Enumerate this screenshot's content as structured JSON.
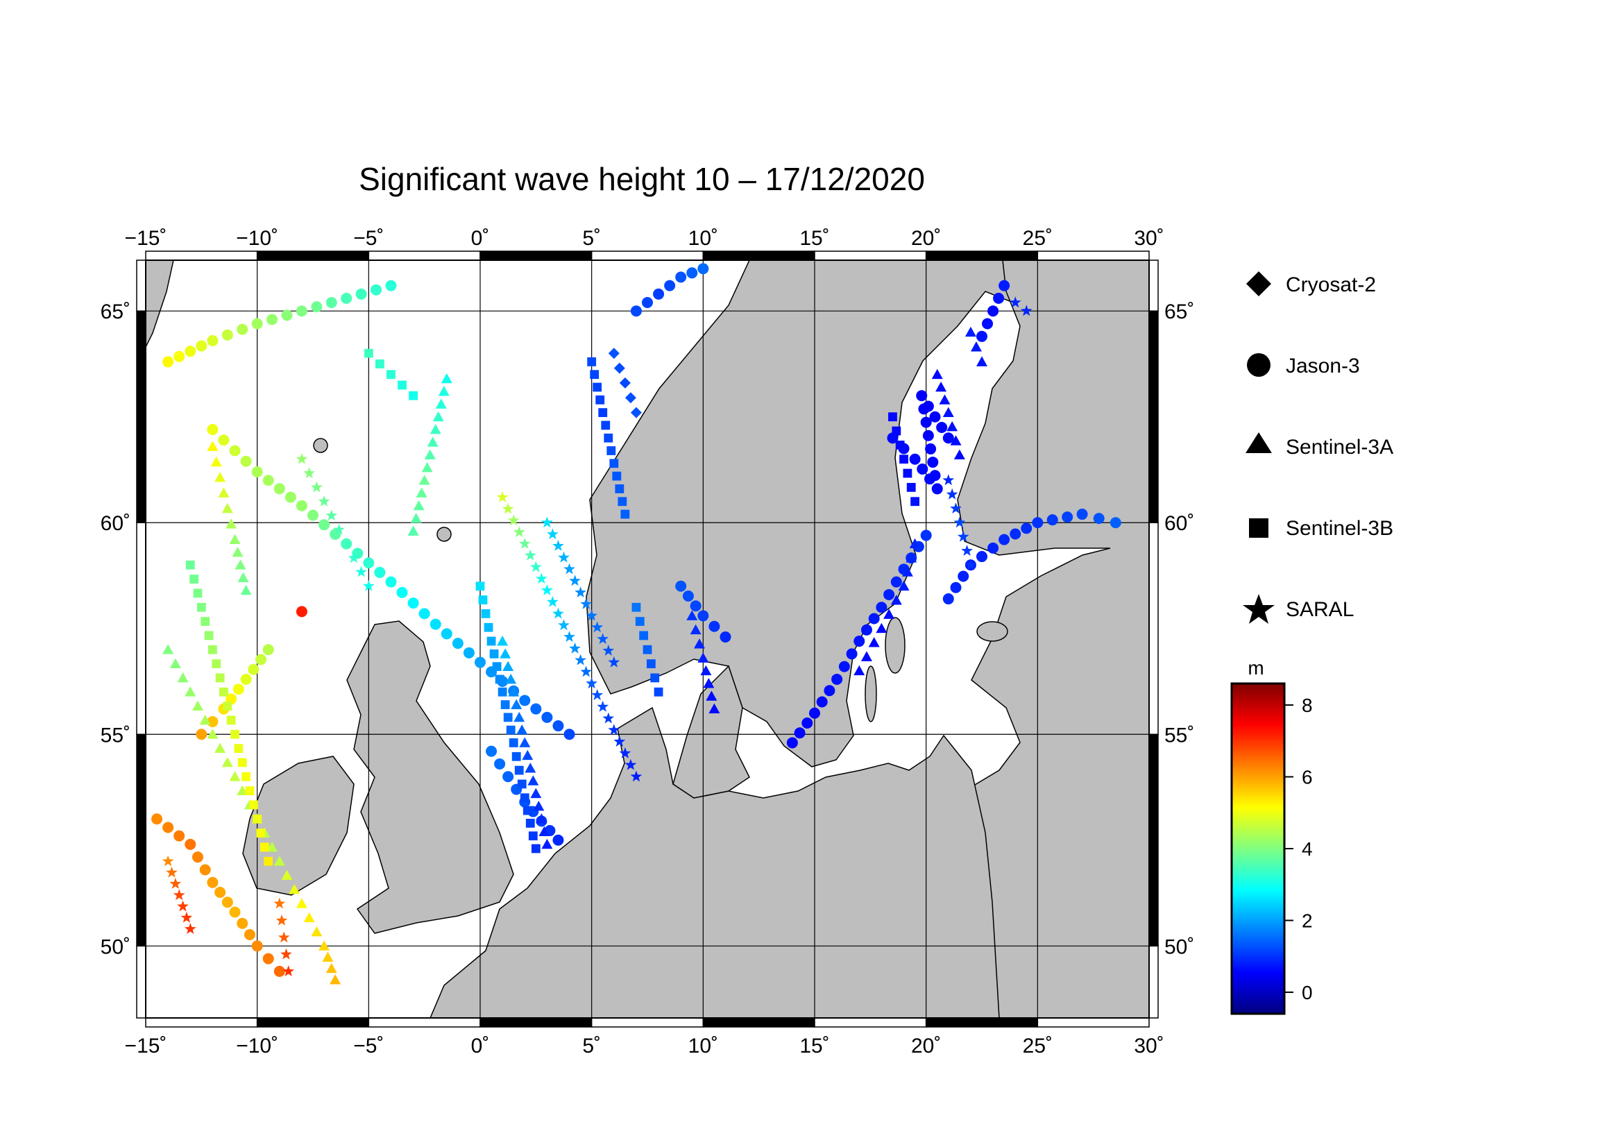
{
  "title": "Significant wave height 10 – 17/12/2020",
  "map": {
    "lon_range": [
      -15,
      30
    ],
    "lat_range": [
      48.3,
      66.2
    ],
    "lon_ticks": [
      -15,
      -10,
      -5,
      0,
      5,
      10,
      15,
      20,
      25,
      30
    ],
    "lon_tick_labels": [
      "−15˚",
      "−10˚",
      "−5˚",
      "0˚",
      "5˚",
      "10˚",
      "15˚",
      "20˚",
      "25˚",
      "30˚"
    ],
    "lat_ticks": [
      50,
      55,
      60,
      65
    ],
    "lat_tick_labels": [
      "50˚",
      "55˚",
      "60˚",
      "65˚"
    ],
    "land_color": "#bebebe",
    "sea_color": "#ffffff",
    "grid": true
  },
  "legend": {
    "items": [
      {
        "label": "Cryosat-2",
        "symbol": "diamond-icon"
      },
      {
        "label": "Jason-3",
        "symbol": "circle-icon"
      },
      {
        "label": "Sentinel-3A",
        "symbol": "triangle-icon"
      },
      {
        "label": "Sentinel-3B",
        "symbol": "square-icon"
      },
      {
        "label": "SARAL",
        "symbol": "star-icon"
      }
    ]
  },
  "colorbar": {
    "unit": "m",
    "range": [
      -0.6,
      8.6
    ],
    "ticks": [
      0,
      2,
      4,
      6,
      8
    ],
    "tick_labels": [
      "0",
      "2",
      "4",
      "6",
      "8"
    ],
    "colormap": "jet",
    "colors": [
      "#00007f",
      "#0000ff",
      "#0080ff",
      "#00ffff",
      "#80ff80",
      "#ffff00",
      "#ff8000",
      "#ff0000",
      "#7f0000"
    ]
  },
  "chart_data": {
    "type": "scatter",
    "title": "Significant wave height 10 – 17/12/2020",
    "xlabel": "",
    "ylabel": "",
    "xlim": [
      -15,
      30
    ],
    "ylim": [
      48.3,
      66.2
    ],
    "value_unit": "m",
    "series": [
      {
        "name": "Jason-3",
        "marker": "circle",
        "tracks": [
          {
            "points": [
              [
                -14,
                63.8,
                5.2
              ],
              [
                -12,
                64.3,
                4.8
              ],
              [
                -10,
                64.7,
                4.3
              ],
              [
                -8,
                65.0,
                4.0
              ],
              [
                -6,
                65.3,
                3.5
              ],
              [
                -4,
                65.6,
                3.2
              ]
            ]
          },
          {
            "points": [
              [
                -12,
                62.2,
                5.0
              ],
              [
                -10,
                61.2,
                4.4
              ],
              [
                -8,
                60.4,
                4.2
              ],
              [
                -6,
                59.5,
                3.5
              ],
              [
                -4,
                58.6,
                3.0
              ],
              [
                -2,
                57.6,
                2.6
              ],
              [
                0,
                56.7,
                2.0
              ],
              [
                2,
                55.8,
                1.6
              ],
              [
                4,
                55.0,
                1.2
              ]
            ]
          },
          {
            "points": [
              [
                0.5,
                54.6,
                1.6
              ],
              [
                2,
                53.4,
                1.3
              ],
              [
                3.5,
                52.5,
                0.9
              ]
            ]
          },
          {
            "points": [
              [
                -9,
                49.4,
                6.5
              ],
              [
                -10,
                50.0,
                6.2
              ],
              [
                -11,
                50.8,
                5.8
              ],
              [
                -12,
                51.5,
                6.0
              ],
              [
                -13,
                52.4,
                6.4
              ],
              [
                -14.5,
                53.0,
                6.2
              ]
            ]
          },
          {
            "points": [
              [
                -12.5,
                55.0,
                6.0
              ],
              [
                -11.5,
                55.6,
                5.4
              ],
              [
                -10.5,
                56.3,
                4.9
              ],
              [
                -9.5,
                57.0,
                4.5
              ]
            ]
          },
          {
            "points": [
              [
                7,
                65.0,
                1.2
              ],
              [
                8,
                65.4,
                1.1
              ],
              [
                9,
                65.8,
                1.3
              ],
              [
                10,
                66.0,
                1.5
              ]
            ]
          },
          {
            "points": [
              [
                9,
                58.5,
                1.3
              ],
              [
                10,
                57.8,
                1.1
              ],
              [
                11,
                57.3,
                0.9
              ]
            ]
          },
          {
            "points": [
              [
                14,
                54.8,
                0.6
              ],
              [
                15,
                55.5,
                0.6
              ],
              [
                16,
                56.3,
                0.7
              ],
              [
                17,
                57.2,
                0.7
              ],
              [
                18,
                58.0,
                0.8
              ],
              [
                19,
                58.9,
                0.9
              ],
              [
                20,
                59.7,
                1.0
              ]
            ]
          },
          {
            "points": [
              [
                21,
                58.2,
                0.9
              ],
              [
                22,
                59.0,
                0.8
              ],
              [
                23.5,
                59.6,
                0.9
              ],
              [
                25,
                60.0,
                1.0
              ],
              [
                27,
                60.2,
                1.2
              ],
              [
                28.5,
                60.0,
                1.4
              ]
            ]
          },
          {
            "points": [
              [
                18.5,
                62.0,
                0.6
              ],
              [
                19.5,
                61.5,
                0.6
              ],
              [
                20.5,
                60.8,
                0.6
              ],
              [
                19.8,
                63.0,
                0.5
              ],
              [
                21,
                62.0,
                0.6
              ]
            ]
          },
          {
            "points": [
              [
                22.5,
                64.4,
                0.7
              ],
              [
                23,
                65.0,
                0.6
              ],
              [
                23.5,
                65.6,
                0.8
              ]
            ]
          },
          {
            "points": [
              [
                -8,
                57.9,
                7.2
              ]
            ]
          }
        ]
      },
      {
        "name": "Sentinel-3A",
        "marker": "triangle",
        "tracks": [
          {
            "points": [
              [
                -14,
                57.0,
                4.0
              ],
              [
                -13,
                56.0,
                4.2
              ],
              [
                -12,
                55.0,
                4.5
              ],
              [
                -11,
                54.0,
                4.6
              ],
              [
                -10,
                53.0,
                4.4
              ],
              [
                -9,
                52.0,
                4.6
              ],
              [
                -8,
                51.0,
                5.2
              ],
              [
                -7,
                50.0,
                5.5
              ],
              [
                -6.5,
                49.2,
                5.8
              ]
            ]
          },
          {
            "points": [
              [
                -12,
                61.8,
                5.2
              ],
              [
                -11.5,
                60.7,
                4.8
              ],
              [
                -11,
                59.6,
                4.2
              ],
              [
                -10.5,
                58.4,
                3.8
              ]
            ]
          },
          {
            "points": [
              [
                1,
                57.2,
                2.4
              ],
              [
                1.5,
                56.0,
                1.8
              ],
              [
                2,
                54.8,
                1.3
              ],
              [
                2.5,
                53.6,
                1.0
              ],
              [
                3,
                52.4,
                0.8
              ]
            ]
          },
          {
            "points": [
              [
                9.5,
                57.8,
                1.0
              ],
              [
                10,
                56.8,
                0.8
              ],
              [
                10.5,
                55.6,
                0.6
              ]
            ]
          },
          {
            "points": [
              [
                17,
                56.5,
                0.6
              ],
              [
                18,
                57.5,
                0.6
              ],
              [
                19,
                58.5,
                0.8
              ],
              [
                19.5,
                59.5,
                0.9
              ]
            ]
          },
          {
            "points": [
              [
                20.5,
                63.5,
                0.6
              ],
              [
                21,
                62.6,
                0.7
              ],
              [
                21.5,
                61.6,
                0.6
              ]
            ]
          },
          {
            "points": [
              [
                22,
                64.5,
                0.8
              ],
              [
                22.5,
                63.8,
                0.7
              ]
            ]
          },
          {
            "points": [
              [
                -3,
                59.8,
                3.6
              ],
              [
                -2.5,
                61.0,
                3.8
              ],
              [
                -2,
                62.2,
                3.4
              ],
              [
                -1.5,
                63.4,
                3.0
              ]
            ]
          }
        ]
      },
      {
        "name": "Sentinel-3B",
        "marker": "square",
        "tracks": [
          {
            "points": [
              [
                -13,
                59.0,
                3.8
              ],
              [
                -12.5,
                58.0,
                4.0
              ],
              [
                -12,
                57.0,
                4.3
              ],
              [
                -11.5,
                56.0,
                4.6
              ],
              [
                -11,
                55.0,
                4.9
              ],
              [
                -10.5,
                54.0,
                5.1
              ],
              [
                -10,
                53.0,
                5.0
              ],
              [
                -9.5,
                52.0,
                5.3
              ]
            ]
          },
          {
            "points": [
              [
                0,
                58.5,
                2.6
              ],
              [
                0.5,
                57.2,
                2.1
              ],
              [
                1,
                56.0,
                1.7
              ],
              [
                1.5,
                54.8,
                1.4
              ],
              [
                2,
                53.5,
                1.2
              ],
              [
                2.5,
                52.3,
                1.0
              ]
            ]
          },
          {
            "points": [
              [
                5,
                63.8,
                1.2
              ],
              [
                5.5,
                62.6,
                1.1
              ],
              [
                6,
                61.4,
                1.3
              ],
              [
                6.5,
                60.2,
                1.4
              ]
            ]
          },
          {
            "points": [
              [
                7,
                58.0,
                1.6
              ],
              [
                7.5,
                57.0,
                1.4
              ],
              [
                8,
                56.0,
                1.2
              ]
            ]
          },
          {
            "points": [
              [
                18.5,
                62.5,
                0.6
              ],
              [
                19,
                61.5,
                0.6
              ],
              [
                19.5,
                60.5,
                0.7
              ]
            ]
          },
          {
            "points": [
              [
                -5,
                64.0,
                3.4
              ],
              [
                -4,
                63.5,
                3.2
              ],
              [
                -3,
                63.0,
                3.0
              ]
            ]
          }
        ]
      },
      {
        "name": "SARAL",
        "marker": "star",
        "tracks": [
          {
            "points": [
              [
                -14,
                52.0,
                6.2
              ],
              [
                -13.5,
                51.2,
                6.8
              ],
              [
                -13,
                50.4,
                7.0
              ]
            ]
          },
          {
            "points": [
              [
                -9,
                51.0,
                6.4
              ],
              [
                -8.8,
                50.2,
                6.6
              ],
              [
                -8.6,
                49.4,
                7.0
              ]
            ]
          },
          {
            "points": [
              [
                1,
                60.6,
                4.8
              ],
              [
                2,
                59.5,
                3.8
              ],
              [
                3,
                58.4,
                2.8
              ],
              [
                4,
                57.3,
                2.0
              ],
              [
                5,
                56.2,
                1.4
              ],
              [
                6,
                55.1,
                1.0
              ],
              [
                7,
                54.0,
                0.8
              ]
            ]
          },
          {
            "points": [
              [
                3,
                60.0,
                2.6
              ],
              [
                4,
                58.9,
                2.0
              ],
              [
                5,
                57.8,
                1.6
              ],
              [
                6,
                56.7,
                1.2
              ]
            ]
          },
          {
            "points": [
              [
                -8,
                61.5,
                4.2
              ],
              [
                -7,
                60.5,
                3.8
              ],
              [
                -6,
                59.5,
                3.4
              ],
              [
                -5,
                58.5,
                3.0
              ]
            ]
          },
          {
            "points": [
              [
                22,
                59.0,
                1.0
              ],
              [
                21.5,
                60.0,
                1.2
              ],
              [
                21,
                61.0,
                0.9
              ]
            ]
          },
          {
            "points": [
              [
                24,
                65.2,
                0.9
              ],
              [
                24.5,
                65.0,
                0.9
              ]
            ]
          }
        ]
      },
      {
        "name": "Cryosat-2",
        "marker": "diamond",
        "tracks": [
          {
            "points": [
              [
                6,
                64.0,
                1.3
              ],
              [
                6.5,
                63.3,
                1.2
              ],
              [
                7,
                62.6,
                1.3
              ]
            ]
          }
        ]
      }
    ]
  }
}
